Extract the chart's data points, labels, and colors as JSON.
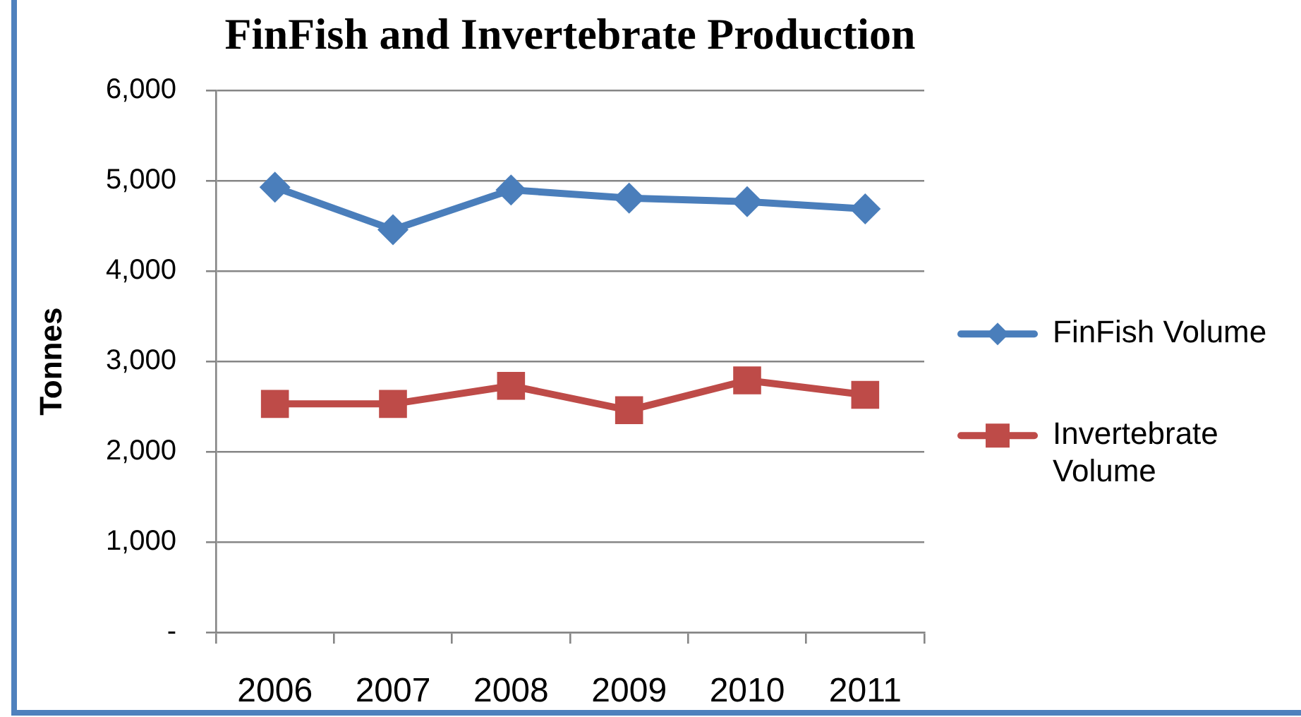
{
  "chart_data": {
    "type": "line",
    "title": "FinFish and Invertebrate Production",
    "ylabel": "Tonnes",
    "categories": [
      "2006",
      "2007",
      "2008",
      "2009",
      "2010",
      "2011"
    ],
    "series": [
      {
        "name": "FinFish Volume",
        "color": "#4a7ebb",
        "marker": "diamond",
        "values": [
          4930,
          4460,
          4900,
          4810,
          4770,
          4690
        ]
      },
      {
        "name": "Invertebrate Volume",
        "color": "#be4b48",
        "marker": "square",
        "values": [
          2530,
          2530,
          2730,
          2460,
          2790,
          2630
        ]
      }
    ],
    "ylim": [
      0,
      6000
    ],
    "yticks": [
      {
        "value": 0,
        "label": "-"
      },
      {
        "value": 1000,
        "label": "1,000"
      },
      {
        "value": 2000,
        "label": "2,000"
      },
      {
        "value": 3000,
        "label": "3,000"
      },
      {
        "value": 4000,
        "label": "4,000"
      },
      {
        "value": 5000,
        "label": "5,000"
      },
      {
        "value": 6000,
        "label": "6,000"
      }
    ],
    "grid": "y",
    "legend": "right",
    "line_style": "solid"
  }
}
